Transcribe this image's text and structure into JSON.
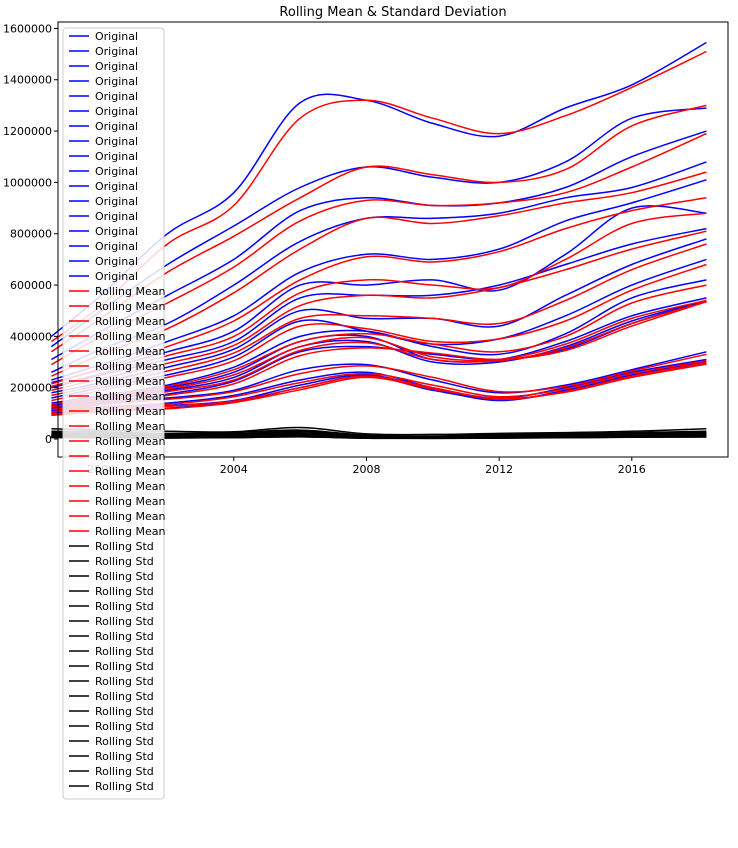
{
  "chart_data": {
    "type": "line",
    "title": "Rolling Mean & Standard Deviation",
    "xlabel": "",
    "ylabel": "",
    "xlim": [
      1998.7,
      2018.9
    ],
    "ylim": [
      -70000,
      1625000
    ],
    "x_ticks": [
      {
        "value": 2000,
        "label": "2000"
      },
      {
        "value": 2004,
        "label": "2004"
      },
      {
        "value": 2008,
        "label": "2008"
      },
      {
        "value": 2012,
        "label": "2012"
      },
      {
        "value": 2016,
        "label": "2016"
      }
    ],
    "y_ticks": [
      {
        "value": 0,
        "label": "0"
      },
      {
        "value": 200000,
        "label": "200000"
      },
      {
        "value": 400000,
        "label": "400000"
      },
      {
        "value": 600000,
        "label": "600000"
      },
      {
        "value": 800000,
        "label": "800000"
      },
      {
        "value": 1000000,
        "label": "1000000"
      },
      {
        "value": 1200000,
        "label": "1200000"
      },
      {
        "value": 1400000,
        "label": "1400000"
      },
      {
        "value": 1600000,
        "label": "1600000"
      }
    ],
    "grid": false,
    "legend_position": "upper-left",
    "colors": {
      "original": "#0000ff",
      "rolling_mean": "#ff0000",
      "rolling_std": "#000000"
    },
    "x": [
      1998.5,
      2000,
      2002,
      2004,
      2006,
      2008,
      2010,
      2012,
      2014,
      2016,
      2018.25
    ],
    "series": [
      {
        "name": "Original",
        "values": [
          400000,
          560000,
          800000,
          960000,
          1310000,
          1320000,
          1230000,
          1180000,
          1290000,
          1380000,
          1545000
        ]
      },
      {
        "name": "Original",
        "values": [
          360000,
          500000,
          680000,
          830000,
          980000,
          1060000,
          1020000,
          1000000,
          1080000,
          1250000,
          1290000
        ]
      },
      {
        "name": "Original",
        "values": [
          310000,
          420000,
          560000,
          700000,
          890000,
          940000,
          910000,
          920000,
          980000,
          1100000,
          1200000
        ]
      },
      {
        "name": "Original",
        "values": [
          260000,
          350000,
          450000,
          600000,
          770000,
          860000,
          860000,
          880000,
          940000,
          980000,
          1080000
        ]
      },
      {
        "name": "Original",
        "values": [
          230000,
          290000,
          380000,
          480000,
          650000,
          720000,
          700000,
          740000,
          850000,
          920000,
          1010000
        ]
      },
      {
        "name": "Original",
        "values": [
          220000,
          270000,
          340000,
          420000,
          600000,
          600000,
          620000,
          580000,
          720000,
          900000,
          880000
        ]
      },
      {
        "name": "Original",
        "values": [
          200000,
          250000,
          310000,
          380000,
          550000,
          560000,
          560000,
          600000,
          680000,
          760000,
          820000
        ]
      },
      {
        "name": "Original",
        "values": [
          180000,
          220000,
          280000,
          350000,
          500000,
          470000,
          470000,
          440000,
          560000,
          680000,
          780000
        ]
      },
      {
        "name": "Original",
        "values": [
          160000,
          200000,
          250000,
          320000,
          460000,
          420000,
          370000,
          390000,
          480000,
          600000,
          700000
        ]
      },
      {
        "name": "Original",
        "values": [
          140000,
          170000,
          210000,
          280000,
          400000,
          420000,
          360000,
          330000,
          410000,
          550000,
          620000
        ]
      },
      {
        "name": "Original",
        "values": [
          130000,
          160000,
          200000,
          260000,
          380000,
          400000,
          310000,
          310000,
          380000,
          480000,
          550000
        ]
      },
      {
        "name": "Original",
        "values": [
          120000,
          150000,
          190000,
          240000,
          360000,
          380000,
          300000,
          300000,
          360000,
          460000,
          540000
        ]
      },
      {
        "name": "Original",
        "values": [
          110000,
          140000,
          175000,
          225000,
          340000,
          360000,
          330000,
          310000,
          350000,
          450000,
          540000
        ]
      },
      {
        "name": "Original",
        "values": [
          120000,
          140000,
          160000,
          190000,
          270000,
          290000,
          230000,
          180000,
          210000,
          270000,
          340000
        ]
      },
      {
        "name": "Original",
        "values": [
          110000,
          125000,
          140000,
          170000,
          230000,
          260000,
          200000,
          160000,
          200000,
          260000,
          310000
        ]
      },
      {
        "name": "Original",
        "values": [
          100000,
          115000,
          130000,
          150000,
          210000,
          250000,
          195000,
          150000,
          190000,
          250000,
          300000
        ]
      },
      {
        "name": "Original",
        "values": [
          95000,
          110000,
          120000,
          145000,
          200000,
          245000,
          190000,
          155000,
          185000,
          245000,
          295000
        ]
      },
      {
        "name": "Rolling Mean",
        "values": [
          380000,
          520000,
          760000,
          910000,
          1250000,
          1320000,
          1250000,
          1190000,
          1260000,
          1370000,
          1510000
        ]
      },
      {
        "name": "Rolling Mean",
        "values": [
          340000,
          470000,
          650000,
          790000,
          940000,
          1060000,
          1030000,
          1000000,
          1050000,
          1220000,
          1300000
        ]
      },
      {
        "name": "Rolling Mean",
        "values": [
          290000,
          400000,
          530000,
          670000,
          850000,
          930000,
          910000,
          920000,
          960000,
          1060000,
          1190000
        ]
      },
      {
        "name": "Rolling Mean",
        "values": [
          245000,
          330000,
          430000,
          570000,
          740000,
          860000,
          840000,
          870000,
          920000,
          960000,
          1040000
        ]
      },
      {
        "name": "Rolling Mean",
        "values": [
          215000,
          275000,
          360000,
          460000,
          620000,
          710000,
          690000,
          730000,
          820000,
          890000,
          940000
        ]
      },
      {
        "name": "Rolling Mean",
        "values": [
          205000,
          255000,
          325000,
          400000,
          570000,
          620000,
          600000,
          590000,
          700000,
          840000,
          880000
        ]
      },
      {
        "name": "Rolling Mean",
        "values": [
          190000,
          235000,
          295000,
          365000,
          520000,
          560000,
          550000,
          590000,
          660000,
          740000,
          810000
        ]
      },
      {
        "name": "Rolling Mean",
        "values": [
          170000,
          210000,
          265000,
          335000,
          470000,
          480000,
          470000,
          450000,
          540000,
          660000,
          760000
        ]
      },
      {
        "name": "Rolling Mean",
        "values": [
          150000,
          190000,
          240000,
          305000,
          440000,
          430000,
          380000,
          390000,
          460000,
          580000,
          680000
        ]
      },
      {
        "name": "Rolling Mean",
        "values": [
          135000,
          165000,
          205000,
          270000,
          380000,
          410000,
          370000,
          340000,
          400000,
          530000,
          600000
        ]
      },
      {
        "name": "Rolling Mean",
        "values": [
          125000,
          155000,
          195000,
          250000,
          360000,
          395000,
          320000,
          310000,
          370000,
          470000,
          540000
        ]
      },
      {
        "name": "Rolling Mean",
        "values": [
          115000,
          145000,
          185000,
          230000,
          345000,
          375000,
          310000,
          305000,
          355000,
          450000,
          535000
        ]
      },
      {
        "name": "Rolling Mean",
        "values": [
          105000,
          135000,
          170000,
          215000,
          325000,
          355000,
          335000,
          310000,
          345000,
          440000,
          535000
        ]
      },
      {
        "name": "Rolling Mean",
        "values": [
          115000,
          135000,
          155000,
          185000,
          255000,
          285000,
          240000,
          185000,
          205000,
          265000,
          330000
        ]
      },
      {
        "name": "Rolling Mean",
        "values": [
          105000,
          120000,
          135000,
          165000,
          220000,
          255000,
          210000,
          165000,
          195000,
          255000,
          305000
        ]
      },
      {
        "name": "Rolling Mean",
        "values": [
          97000,
          112000,
          127000,
          148000,
          200000,
          245000,
          200000,
          155000,
          185000,
          245000,
          298000
        ]
      },
      {
        "name": "Rolling Mean",
        "values": [
          92000,
          106000,
          118000,
          142000,
          192000,
          240000,
          195000,
          158000,
          182000,
          240000,
          292000
        ]
      },
      {
        "name": "Rolling Std",
        "values": [
          40000,
          35000,
          30000,
          28000,
          45000,
          20000,
          18000,
          22000,
          25000,
          30000,
          40000
        ]
      },
      {
        "name": "Rolling Std",
        "values": [
          30000,
          28000,
          22000,
          25000,
          35000,
          15000,
          12000,
          18000,
          20000,
          25000,
          30000
        ]
      },
      {
        "name": "Rolling Std",
        "values": [
          25000,
          22000,
          18000,
          20000,
          30000,
          12000,
          10000,
          15000,
          18000,
          22000,
          25000
        ]
      },
      {
        "name": "Rolling Std",
        "values": [
          20000,
          18000,
          15000,
          18000,
          25000,
          10000,
          9000,
          12000,
          15000,
          20000,
          22000
        ]
      },
      {
        "name": "Rolling Std",
        "values": [
          18000,
          15000,
          12000,
          15000,
          22000,
          9000,
          8000,
          10000,
          14000,
          18000,
          20000
        ]
      },
      {
        "name": "Rolling Std",
        "values": [
          15000,
          13000,
          10000,
          13000,
          20000,
          8000,
          7000,
          9000,
          12000,
          16000,
          18000
        ]
      },
      {
        "name": "Rolling Std",
        "values": [
          13000,
          11000,
          9000,
          12000,
          18000,
          7000,
          6000,
          8000,
          11000,
          14000,
          16000
        ]
      },
      {
        "name": "Rolling Std",
        "values": [
          12000,
          10000,
          8000,
          11000,
          16000,
          6000,
          5000,
          7000,
          10000,
          13000,
          15000
        ]
      },
      {
        "name": "Rolling Std",
        "values": [
          11000,
          9000,
          7000,
          10000,
          15000,
          5500,
          4500,
          6500,
          9000,
          12000,
          14000
        ]
      },
      {
        "name": "Rolling Std",
        "values": [
          10000,
          8500,
          6500,
          9000,
          14000,
          5000,
          4000,
          6000,
          8500,
          11000,
          13000
        ]
      },
      {
        "name": "Rolling Std",
        "values": [
          9000,
          8000,
          6000,
          8500,
          13000,
          4800,
          3800,
          5500,
          8000,
          10000,
          12000
        ]
      },
      {
        "name": "Rolling Std",
        "values": [
          8500,
          7500,
          5500,
          8000,
          12000,
          4500,
          3500,
          5000,
          7500,
          9500,
          11000
        ]
      },
      {
        "name": "Rolling Std",
        "values": [
          8000,
          7000,
          5000,
          7500,
          11000,
          4200,
          3200,
          4800,
          7000,
          9000,
          10000
        ]
      },
      {
        "name": "Rolling Std",
        "values": [
          7500,
          6500,
          4800,
          7000,
          10000,
          4000,
          3000,
          4500,
          6500,
          8500,
          9500
        ]
      },
      {
        "name": "Rolling Std",
        "values": [
          7000,
          6000,
          4500,
          6500,
          9500,
          3800,
          2800,
          4200,
          6000,
          8000,
          9000
        ]
      },
      {
        "name": "Rolling Std",
        "values": [
          6500,
          5500,
          4200,
          6000,
          9000,
          3500,
          2600,
          4000,
          5500,
          7500,
          8500
        ]
      },
      {
        "name": "Rolling Std",
        "values": [
          6000,
          5000,
          4000,
          5500,
          8500,
          3200,
          2400,
          3800,
          5000,
          7000,
          8000
        ]
      }
    ]
  }
}
